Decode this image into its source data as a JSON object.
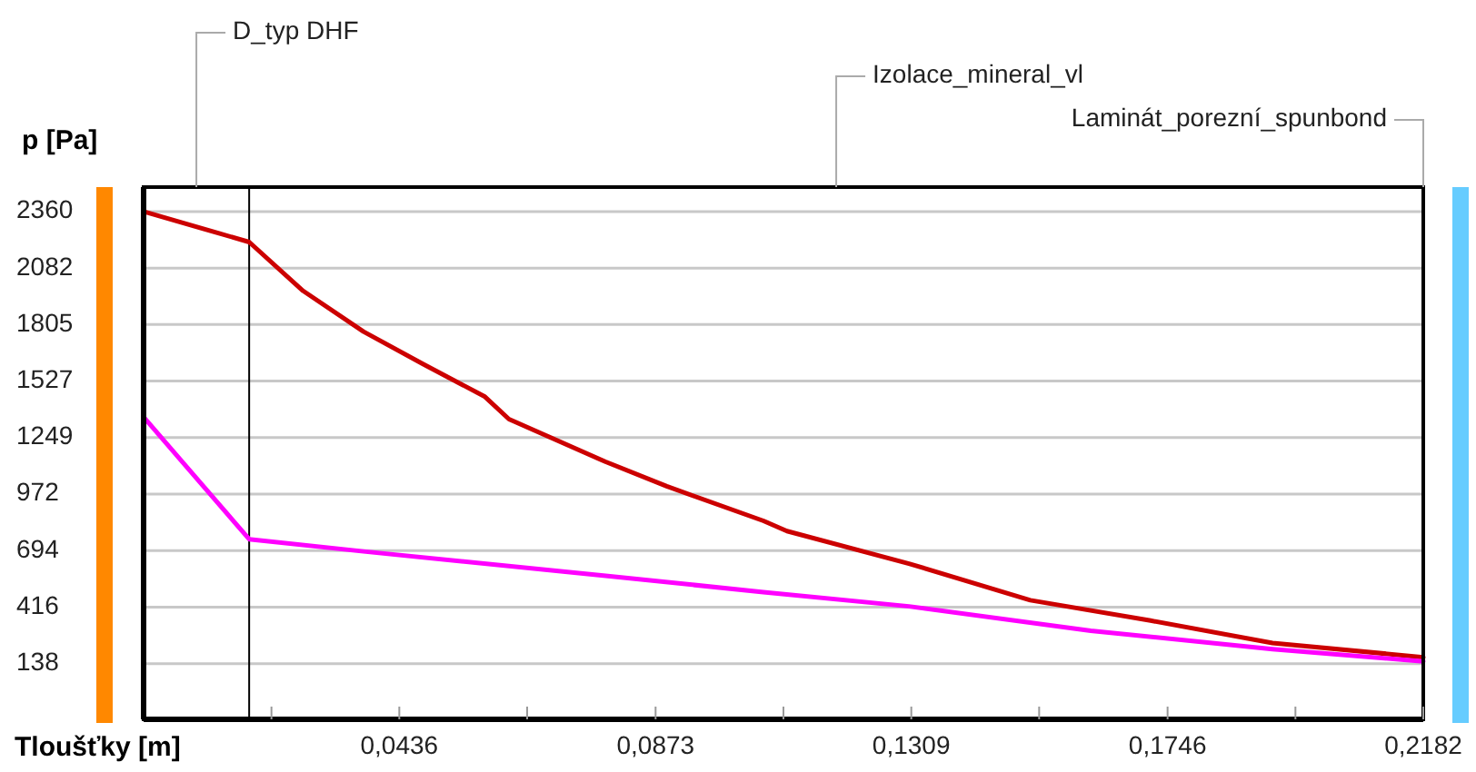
{
  "chart_data": {
    "type": "line",
    "xlabel": "Tloušťky [m]",
    "ylabel": "p [Pa]",
    "xlim": [
      0,
      0.2182
    ],
    "ylim": [
      -135,
      2480
    ],
    "xticks": [
      {
        "value": 0.0218,
        "label": null
      },
      {
        "value": 0.0436,
        "label": "0,0436"
      },
      {
        "value": 0.0654,
        "label": null
      },
      {
        "value": 0.0873,
        "label": "0,0873"
      },
      {
        "value": 0.1091,
        "label": null
      },
      {
        "value": 0.1309,
        "label": "0,1309"
      },
      {
        "value": 0.1527,
        "label": null
      },
      {
        "value": 0.1746,
        "label": "0,1746"
      },
      {
        "value": 0.1964,
        "label": null
      },
      {
        "value": 0.2182,
        "label": "0,2182"
      }
    ],
    "yticks": [
      138,
      416,
      694,
      972,
      1249,
      1527,
      1805,
      2082,
      2360
    ],
    "grid": "y",
    "marker": "none",
    "line_style": "solid",
    "series": [
      {
        "color": "#cc0000",
        "x": [
          0,
          0.018,
          0.0272,
          0.0375,
          0.0477,
          0.0582,
          0.0623,
          0.0788,
          0.0892,
          0.1057,
          0.1097,
          0.1305,
          0.1512,
          0.1717,
          0.1925,
          0.2182
        ],
        "values": [
          2360,
          2210,
          1970,
          1770,
          1610,
          1450,
          1340,
          1130,
          1010,
          840,
          790,
          630,
          450,
          350,
          240,
          170
        ]
      },
      {
        "color": "#ff00ff",
        "x": [
          0,
          0.018,
          0.0375,
          0.0788,
          0.1057,
          0.1305,
          0.1615,
          0.1925,
          0.2182
        ],
        "values": [
          1350,
          750,
          690,
          570,
          490,
          420,
          300,
          210,
          150
        ]
      }
    ],
    "ref_lines": [
      {
        "axis": "x",
        "value": 0.018,
        "color": "#000000"
      }
    ],
    "annotations": [
      "D_typ DHF",
      "Izolace_mineral_vl",
      "Laminát_porezní_spunbond"
    ]
  }
}
